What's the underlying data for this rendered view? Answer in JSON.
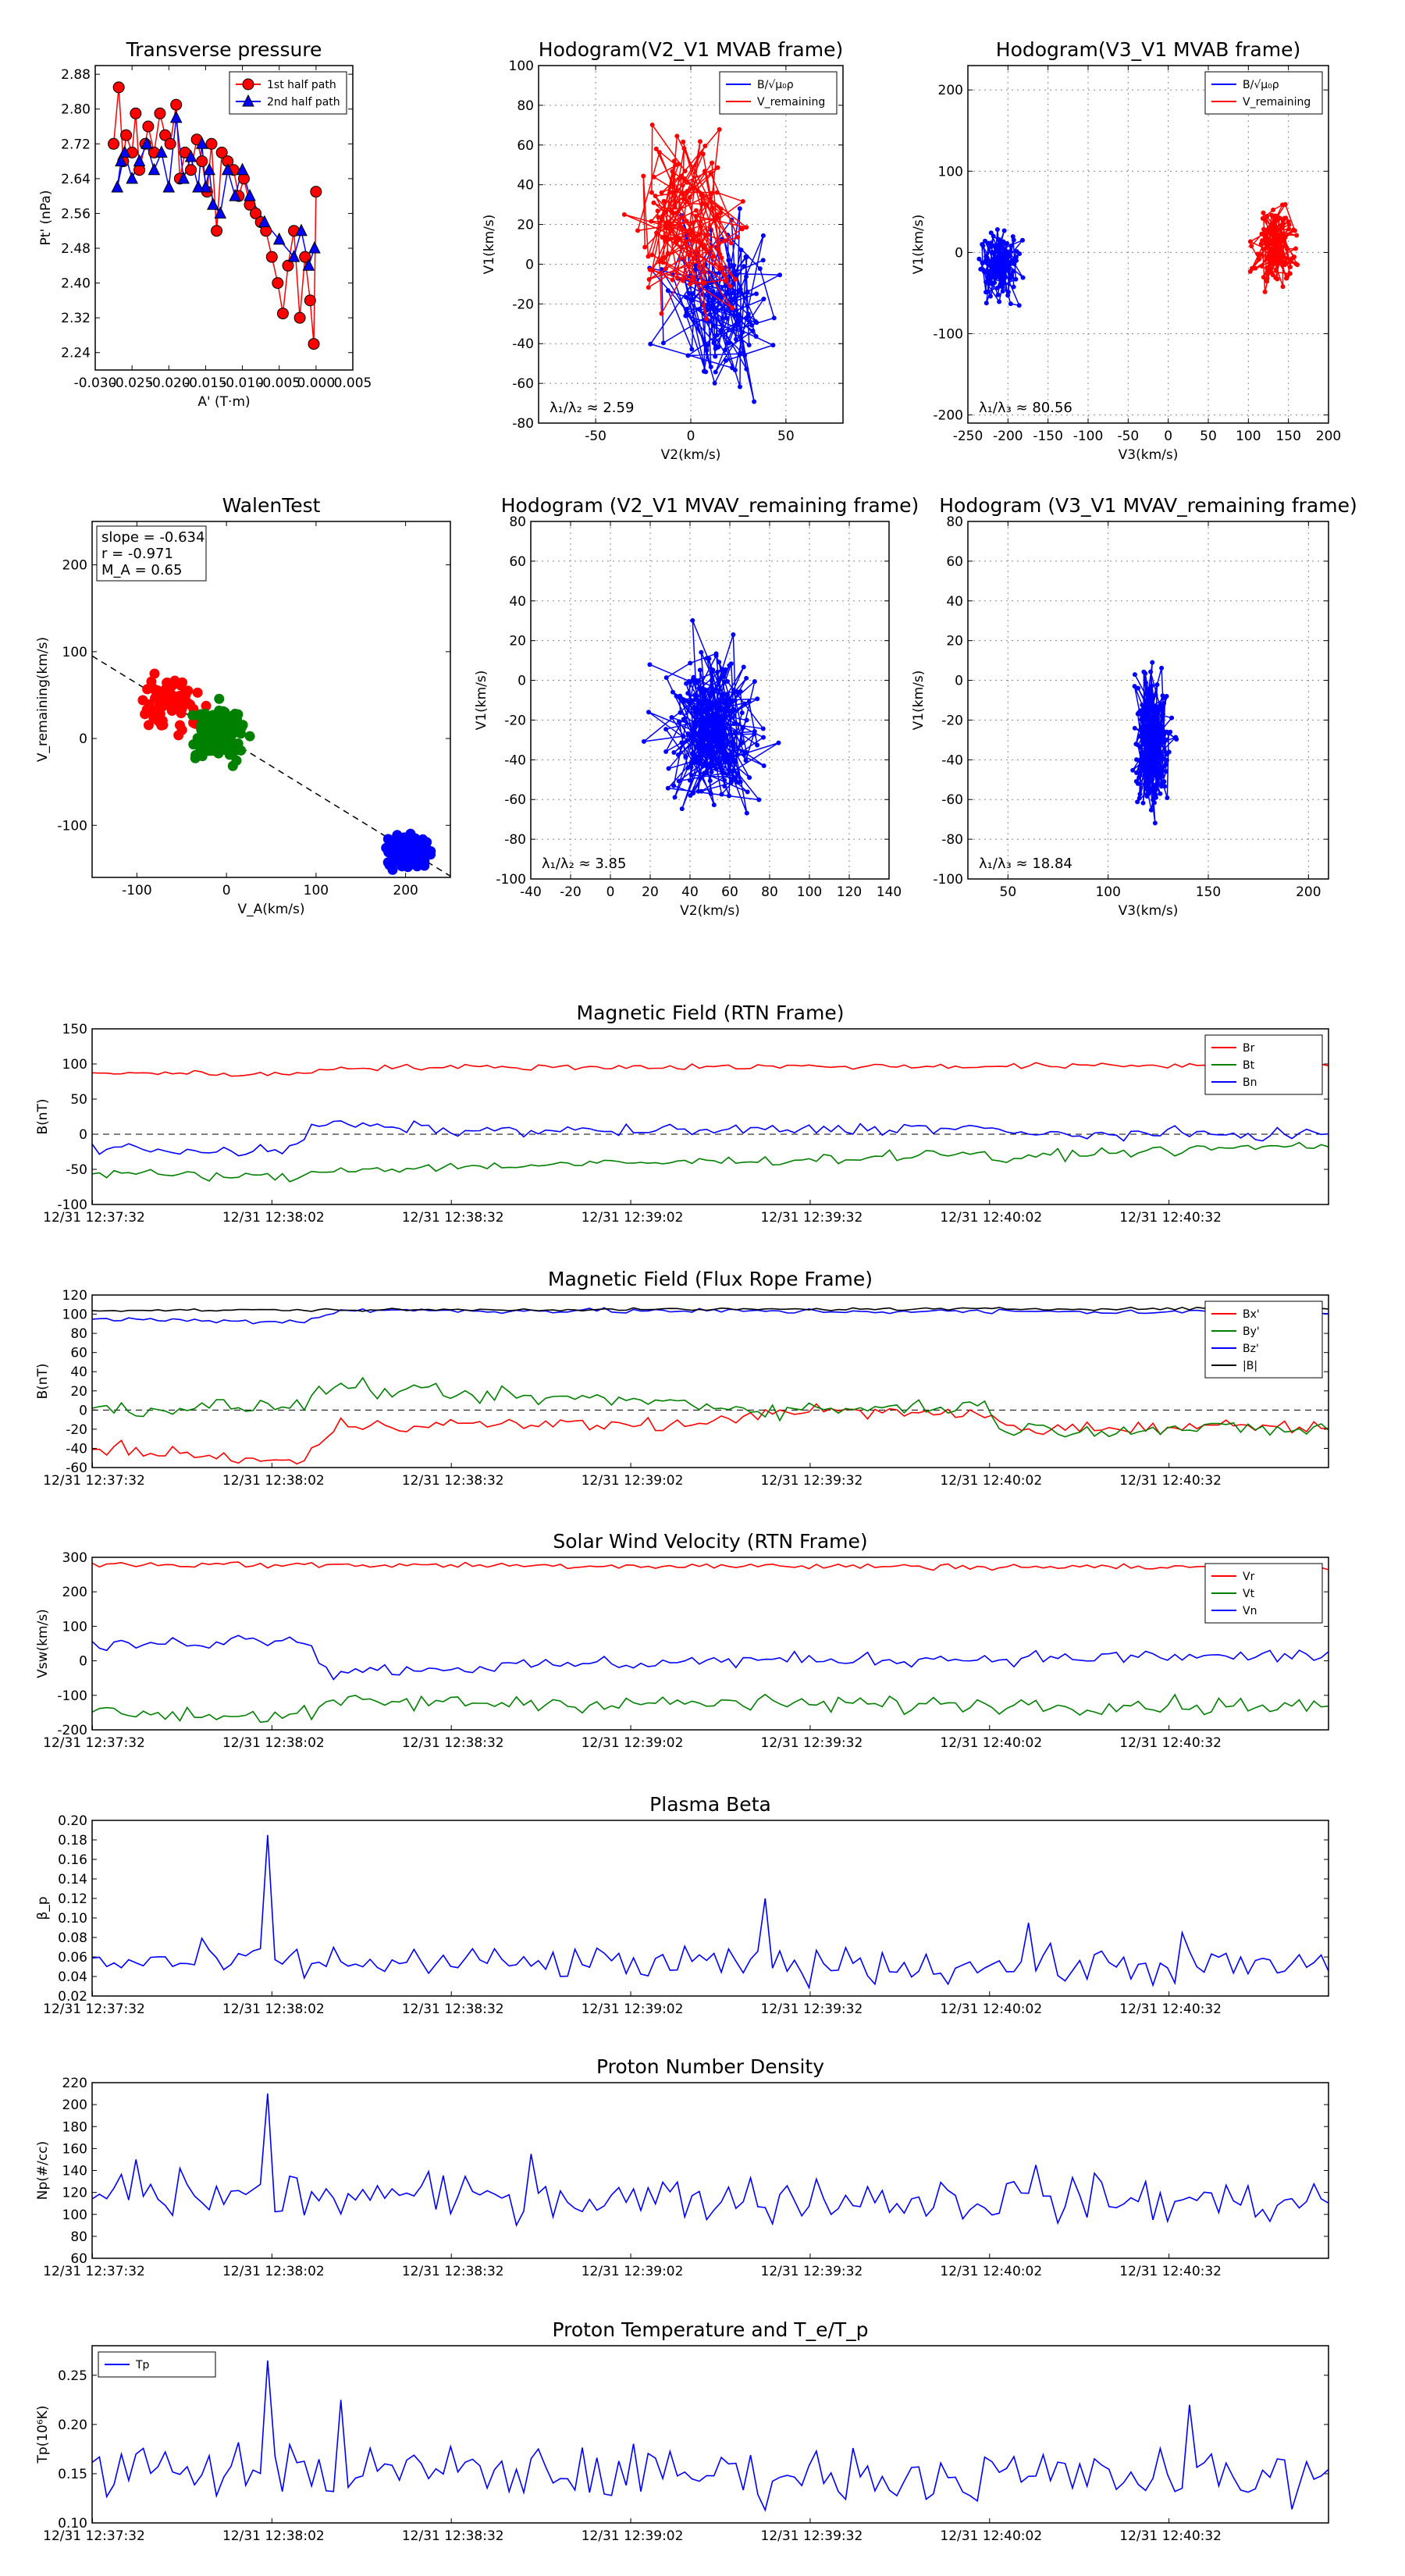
{
  "colors": {
    "red": "#ff0000",
    "blue": "#0000ff",
    "green": "#008000",
    "black": "#000000"
  },
  "chart_data": [
    {
      "id": "pt",
      "type": "line",
      "title": "Transverse pressure",
      "xlabel": "A' (T·m)",
      "ylabel": "Pt' (nPa)",
      "xlim": [
        -0.03,
        0.005
      ],
      "ylim": [
        2.2,
        2.9
      ],
      "xticks": [
        "-0.030",
        "-0.025",
        "-0.020",
        "-0.015",
        "-0.010",
        "-0.005",
        "0.000",
        "0.005"
      ],
      "yticks": [
        "2.24",
        "2.32",
        "2.40",
        "2.48",
        "2.56",
        "2.64",
        "2.72",
        "2.80",
        "2.88"
      ],
      "legend": [
        "1st half path",
        "2nd half path"
      ],
      "series": [
        {
          "name": "1st half path",
          "color": "#ff0000",
          "marker": "circle",
          "x": [
            -0.0275,
            -0.0268,
            -0.0262,
            -0.0258,
            -0.025,
            -0.0245,
            -0.024,
            -0.0232,
            -0.0228,
            -0.022,
            -0.0212,
            -0.0205,
            -0.0198,
            -0.019,
            -0.0185,
            -0.0178,
            -0.017,
            -0.0162,
            -0.0155,
            -0.0148,
            -0.0142,
            -0.0135,
            -0.0128,
            -0.012,
            -0.0112,
            -0.0105,
            -0.0098,
            -0.009,
            -0.0082,
            -0.0075,
            -0.0068,
            -0.006,
            -0.0052,
            -0.0045,
            -0.0038,
            -0.003,
            -0.0022,
            -0.0015,
            -0.0008,
            -0.0003,
            0.0
          ],
          "y": [
            2.72,
            2.85,
            2.68,
            2.74,
            2.7,
            2.79,
            2.66,
            2.72,
            2.76,
            2.7,
            2.79,
            2.74,
            2.72,
            2.81,
            2.64,
            2.7,
            2.66,
            2.73,
            2.68,
            2.61,
            2.72,
            2.52,
            2.7,
            2.68,
            2.66,
            2.6,
            2.64,
            2.58,
            2.56,
            2.54,
            2.52,
            2.46,
            2.4,
            2.33,
            2.44,
            2.52,
            2.32,
            2.46,
            2.36,
            2.26,
            2.61
          ]
        },
        {
          "name": "2nd half path",
          "color": "#0000ff",
          "marker": "triangle",
          "x": [
            -0.0002,
            -0.001,
            -0.002,
            -0.003,
            -0.005,
            -0.007,
            -0.009,
            -0.01,
            -0.011,
            -0.012,
            -0.013,
            -0.014,
            -0.0145,
            -0.015,
            -0.0155,
            -0.016,
            -0.017,
            -0.018,
            -0.019,
            -0.02,
            -0.021,
            -0.022,
            -0.023,
            -0.024,
            -0.025,
            -0.026,
            -0.027,
            -0.0265
          ],
          "y": [
            2.48,
            2.44,
            2.52,
            2.46,
            2.5,
            2.54,
            2.6,
            2.66,
            2.6,
            2.66,
            2.56,
            2.58,
            2.66,
            2.62,
            2.72,
            2.62,
            2.69,
            2.64,
            2.78,
            2.62,
            2.7,
            2.66,
            2.72,
            2.68,
            2.64,
            2.7,
            2.62,
            2.68
          ]
        }
      ]
    },
    {
      "id": "h1",
      "type": "line",
      "title": "Hodogram(V2_V1 MVAB frame)",
      "xlabel": "V2(km/s)",
      "ylabel": "V1(km/s)",
      "xlim": [
        -80,
        80
      ],
      "ylim": [
        -80,
        100
      ],
      "xticks": [
        "-50",
        "0",
        "50"
      ],
      "yticks": [
        "-80",
        "-60",
        "-40",
        "-20",
        "0",
        "20",
        "40",
        "60",
        "80",
        "100"
      ],
      "legend": [
        "B/√μ₀ρ",
        "V_remaining"
      ],
      "annotation": "λ₁/λ₂ ≈ 2.59",
      "series": [
        {
          "name": "B/√μ₀ρ",
          "color": "#0000ff",
          "n": 130,
          "cx": 15,
          "cy": -20,
          "sx": 25,
          "sy": 35
        },
        {
          "name": "V_remaining",
          "color": "#ff0000",
          "n": 130,
          "cx": 0,
          "cy": 20,
          "sx": 25,
          "sy": 35
        }
      ]
    },
    {
      "id": "h2",
      "type": "line",
      "title": "Hodogram(V3_V1 MVAB frame)",
      "xlabel": "V3(km/s)",
      "ylabel": "V1(km/s)",
      "xlim": [
        -250,
        200
      ],
      "ylim": [
        -210,
        230
      ],
      "xticks": [
        "-250",
        "-200",
        "-150",
        "-100",
        "-50",
        "0",
        "50",
        "100",
        "150",
        "200"
      ],
      "yticks": [
        "-200",
        "-100",
        "0",
        "100",
        "200"
      ],
      "legend": [
        "B/√μ₀ρ",
        "V_remaining"
      ],
      "annotation": "λ₁/λ₃ ≈ 80.56",
      "series": [
        {
          "name": "B/√μ₀ρ",
          "color": "#0000ff",
          "n": 120,
          "cx": -212,
          "cy": -20,
          "sx": 22,
          "sy": 40
        },
        {
          "name": "V_remaining",
          "color": "#ff0000",
          "n": 120,
          "cx": 133,
          "cy": 10,
          "sx": 22,
          "sy": 45
        }
      ]
    },
    {
      "id": "walen",
      "type": "scatter",
      "title": "WalenTest",
      "xlabel": "V_A(km/s)",
      "ylabel": "V_remaining(km/s)",
      "xlim": [
        -150,
        250
      ],
      "ylim": [
        -160,
        250
      ],
      "xticks": [
        "-100",
        "0",
        "100",
        "200"
      ],
      "yticks": [
        "-100",
        "0",
        "100",
        "200"
      ],
      "stats": [
        "slope = -0.634",
        "r = -0.971",
        "M_A = 0.65"
      ],
      "fit_slope": -0.634,
      "series": [
        {
          "color": "#ff0000",
          "n": 70,
          "cx": -60,
          "cy": 40,
          "sx": 30,
          "sy": 35
        },
        {
          "color": "#008000",
          "n": 170,
          "cx": -10,
          "cy": 5,
          "sx": 25,
          "sy": 25
        },
        {
          "color": "#0000ff",
          "n": 160,
          "cx": 205,
          "cy": -130,
          "sx": 20,
          "sy": 15
        }
      ]
    },
    {
      "id": "h3",
      "type": "line",
      "title": "Hodogram (V2_V1 MVAV_remaining frame)",
      "xlabel": "V2(km/s)",
      "ylabel": "V1(km/s)",
      "xlim": [
        -40,
        140
      ],
      "ylim": [
        -100,
        80
      ],
      "xticks": [
        "-40",
        "-20",
        "0",
        "20",
        "40",
        "60",
        "80",
        "100",
        "120",
        "140"
      ],
      "yticks": [
        "-100",
        "-80",
        "-60",
        "-40",
        "-20",
        "0",
        "20",
        "40",
        "60",
        "80"
      ],
      "annotation": "λ₁/λ₂ ≈ 3.85",
      "series": [
        {
          "color": "#0000ff",
          "n": 240,
          "cx": 50,
          "cy": -25,
          "sx": 22,
          "sy": 35
        }
      ]
    },
    {
      "id": "h4",
      "type": "line",
      "title": "Hodogram (V3_V1 MVAV_remaining frame)",
      "xlabel": "V3(km/s)",
      "ylabel": "V1(km/s)",
      "xlim": [
        30,
        210
      ],
      "ylim": [
        -100,
        80
      ],
      "xticks": [
        "50",
        "100",
        "150",
        "200"
      ],
      "yticks": [
        "-100",
        "-80",
        "-60",
        "-40",
        "-20",
        "0",
        "20",
        "40",
        "60",
        "80"
      ],
      "annotation": "λ₁/λ₃ ≈ 18.84",
      "series": [
        {
          "color": "#0000ff",
          "n": 240,
          "cx": 122,
          "cy": -30,
          "sx": 8,
          "sy": 30
        }
      ]
    },
    {
      "id": "bfield",
      "type": "line",
      "title": "Magnetic Field (RTN Frame)",
      "ylabel": "B(nT)",
      "ylim": [
        -100,
        150
      ],
      "yticks": [
        "-100",
        "-50",
        "0",
        "50",
        "100",
        "150"
      ],
      "time_ticks": [
        "12/31 12:37:32",
        "12/31 12:38:02",
        "12/31 12:38:32",
        "12/31 12:39:02",
        "12/31 12:39:32",
        "12/31 12:40:02",
        "12/31 12:40:32"
      ],
      "legend": [
        "Br",
        "Bt",
        "Bn"
      ],
      "zero_line": true,
      "series": [
        {
          "name": "Br",
          "color": "#ff0000",
          "segments": [
            [
              0,
              88
            ],
            [
              0.16,
              85
            ],
            [
              0.2,
              95
            ],
            [
              1,
              98
            ]
          ],
          "noise": 3
        },
        {
          "name": "Bt",
          "color": "#008000",
          "segments": [
            [
              0,
              -55
            ],
            [
              0.16,
              -62
            ],
            [
              0.2,
              -50
            ],
            [
              0.6,
              -35
            ],
            [
              0.72,
              -25
            ],
            [
              0.74,
              -45
            ],
            [
              0.76,
              -30
            ],
            [
              1,
              -15
            ]
          ],
          "noise": 5
        },
        {
          "name": "Bn",
          "color": "#0000ff",
          "segments": [
            [
              0,
              -20
            ],
            [
              0.16,
              -25
            ],
            [
              0.18,
              15
            ],
            [
              0.3,
              5
            ],
            [
              0.5,
              5
            ],
            [
              0.72,
              10
            ],
            [
              0.74,
              0
            ],
            [
              1,
              0
            ]
          ],
          "noise": 6
        }
      ]
    },
    {
      "id": "bfr",
      "type": "line",
      "title": "Magnetic Field (Flux Rope Frame)",
      "ylabel": "B(nT)",
      "ylim": [
        -60,
        120
      ],
      "yticks": [
        "-60",
        "-40",
        "-20",
        "0",
        "20",
        "40",
        "60",
        "80",
        "100",
        "120"
      ],
      "time_ticks": [
        "12/31 12:37:32",
        "12/31 12:38:02",
        "12/31 12:38:32",
        "12/31 12:39:02",
        "12/31 12:39:32",
        "12/31 12:40:02",
        "12/31 12:40:32"
      ],
      "legend": [
        "Bx'",
        "By'",
        "Bz'",
        "|B|"
      ],
      "zero_line": true,
      "series": [
        {
          "name": "Bx'",
          "color": "#ff0000",
          "segments": [
            [
              0,
              -40
            ],
            [
              0.17,
              -55
            ],
            [
              0.2,
              -15
            ],
            [
              0.5,
              -15
            ],
            [
              0.55,
              0
            ],
            [
              0.72,
              -5
            ],
            [
              0.75,
              -20
            ],
            [
              1,
              -15
            ]
          ],
          "noise": 5
        },
        {
          "name": "By'",
          "color": "#008000",
          "segments": [
            [
              0,
              0
            ],
            [
              0.17,
              5
            ],
            [
              0.19,
              25
            ],
            [
              0.3,
              15
            ],
            [
              0.45,
              10
            ],
            [
              0.55,
              0
            ],
            [
              0.72,
              5
            ],
            [
              0.74,
              -20
            ],
            [
              1,
              -20
            ]
          ],
          "noise": 6
        },
        {
          "name": "Bz'",
          "color": "#0000ff",
          "segments": [
            [
              0,
              95
            ],
            [
              0.17,
              92
            ],
            [
              0.2,
              104
            ],
            [
              1,
              102
            ]
          ],
          "noise": 2
        },
        {
          "name": "|B|",
          "color": "#000000",
          "segments": [
            [
              0,
              104
            ],
            [
              1,
              106
            ]
          ],
          "noise": 1
        }
      ]
    },
    {
      "id": "vsw",
      "type": "line",
      "title": "Solar Wind Velocity (RTN Frame)",
      "ylabel": "Vsw(km/s)",
      "ylim": [
        -200,
        300
      ],
      "yticks": [
        "-200",
        "-100",
        "0",
        "100",
        "200",
        "300"
      ],
      "time_ticks": [
        "12/31 12:37:32",
        "12/31 12:38:02",
        "12/31 12:38:32",
        "12/31 12:39:02",
        "12/31 12:39:32",
        "12/31 12:40:02",
        "12/31 12:40:32"
      ],
      "legend": [
        "Vr",
        "Vt",
        "Vn"
      ],
      "series": [
        {
          "name": "Vr",
          "color": "#ff0000",
          "segments": [
            [
              0,
              280
            ],
            [
              0.5,
              275
            ],
            [
              1,
              270
            ]
          ],
          "noise": 7
        },
        {
          "name": "Vt",
          "color": "#008000",
          "segments": [
            [
              0,
              -150
            ],
            [
              0.17,
              -160
            ],
            [
              0.2,
              -120
            ],
            [
              1,
              -130
            ]
          ],
          "noise": 18
        },
        {
          "name": "Vn",
          "color": "#0000ff",
          "segments": [
            [
              0,
              40
            ],
            [
              0.17,
              70
            ],
            [
              0.19,
              -30
            ],
            [
              0.5,
              0
            ],
            [
              1,
              15
            ]
          ],
          "noise": 15
        }
      ]
    },
    {
      "id": "beta",
      "type": "line",
      "title": "Plasma Beta",
      "ylabel": "β_p",
      "ylim": [
        0.02,
        0.2
      ],
      "yticks": [
        "0.02",
        "0.04",
        "0.06",
        "0.08",
        "0.10",
        "0.12",
        "0.14",
        "0.16",
        "0.18",
        "0.20"
      ],
      "time_ticks": [
        "12/31 12:37:32",
        "12/31 12:38:02",
        "12/31 12:38:32",
        "12/31 12:39:02",
        "12/31 12:39:32",
        "12/31 12:40:02",
        "12/31 12:40:32"
      ],
      "series": [
        {
          "name": "Beta",
          "color": "#0000ff",
          "segments": [
            [
              0,
              0.055
            ],
            [
              1,
              0.05
            ]
          ],
          "noise": 0.013,
          "spikes": [
            [
              0.142,
              0.185
            ],
            [
              0.543,
              0.12
            ],
            [
              0.755,
              0.095
            ],
            [
              0.884,
              0.085
            ]
          ]
        }
      ]
    },
    {
      "id": "np",
      "type": "line",
      "title": "Proton Number Density",
      "ylabel": "Np(#/cc)",
      "ylim": [
        60,
        220
      ],
      "yticks": [
        "60",
        "80",
        "100",
        "120",
        "140",
        "160",
        "180",
        "200",
        "220"
      ],
      "time_ticks": [
        "12/31 12:37:32",
        "12/31 12:38:02",
        "12/31 12:38:32",
        "12/31 12:39:02",
        "12/31 12:39:32",
        "12/31 12:40:02",
        "12/31 12:40:32"
      ],
      "series": [
        {
          "name": "Np",
          "color": "#0000ff",
          "segments": [
            [
              0,
              118
            ],
            [
              1,
              112
            ]
          ],
          "noise": 15,
          "spikes": [
            [
              0.142,
              210
            ],
            [
              0.036,
              150
            ],
            [
              0.355,
              155
            ],
            [
              0.762,
              145
            ]
          ]
        }
      ]
    },
    {
      "id": "tp",
      "type": "line",
      "title": "Proton Temperature and T_e/T_p",
      "ylabel": "Tp(10⁶K)",
      "ylim": [
        0.1,
        0.28
      ],
      "yticks": [
        "0.10",
        "0.15",
        "0.20",
        "0.25"
      ],
      "time_ticks": [
        "12/31 12:37:32",
        "12/31 12:38:02",
        "12/31 12:38:32",
        "12/31 12:39:02",
        "12/31 12:39:32",
        "12/31 12:40:02",
        "12/31 12:40:32"
      ],
      "legend": [
        "Tp"
      ],
      "series": [
        {
          "name": "Tp",
          "color": "#0000ff",
          "segments": [
            [
              0,
              0.155
            ],
            [
              1,
              0.145
            ]
          ],
          "noise": 0.02,
          "spikes": [
            [
              0.142,
              0.265
            ],
            [
              0.2,
              0.225
            ],
            [
              0.89,
              0.22
            ]
          ]
        }
      ]
    }
  ]
}
